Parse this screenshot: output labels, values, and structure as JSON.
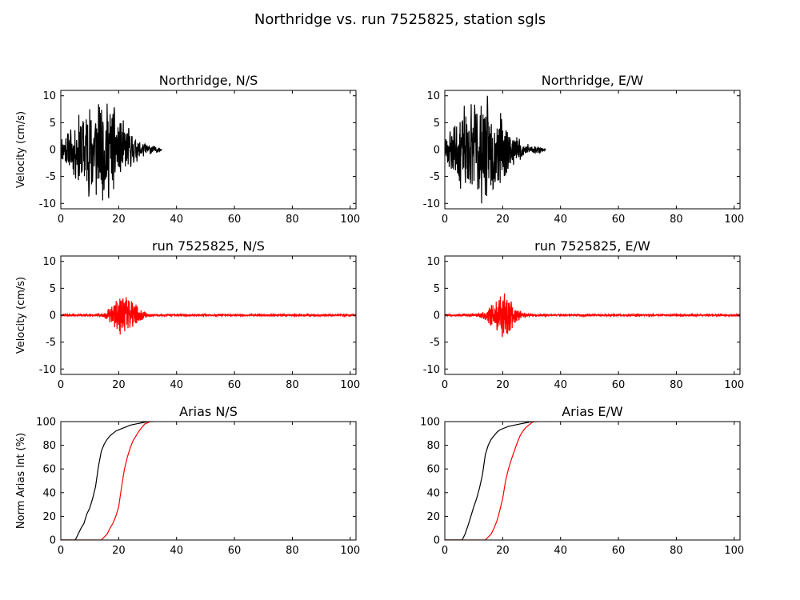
{
  "figure": {
    "title": "Northridge vs. run 7525825, station sgls"
  },
  "chart_data": [
    {
      "id": "ns-record",
      "type": "line",
      "title": "Northridge, N/S",
      "xlabel": "",
      "ylabel": "Velocity (cm/s)",
      "xlim": [
        0,
        102
      ],
      "ylim": [
        -11,
        11
      ],
      "xticks": [
        0,
        20,
        40,
        60,
        80,
        100
      ],
      "yticks": [
        10,
        5,
        0,
        -5,
        -10
      ],
      "series": [
        {
          "color": "#000000",
          "gen": {
            "start": 0,
            "end": 35,
            "peak": 10,
            "center": 13,
            "spread": 10,
            "seed": 11,
            "step": 0.08
          }
        }
      ]
    },
    {
      "id": "ew-record",
      "type": "line",
      "title": "Northridge, E/W",
      "xlabel": "",
      "ylabel": "",
      "xlim": [
        0,
        102
      ],
      "ylim": [
        -11,
        11
      ],
      "xticks": [
        0,
        20,
        40,
        60,
        80,
        100
      ],
      "yticks": [
        10,
        5,
        0,
        -5,
        -10
      ],
      "series": [
        {
          "color": "#000000",
          "gen": {
            "start": 0,
            "end": 35,
            "peak": 10,
            "center": 12,
            "spread": 10,
            "seed": 23,
            "step": 0.08
          }
        }
      ]
    },
    {
      "id": "ns-run",
      "type": "line",
      "title": "run 7525825, N/S",
      "xlabel": "",
      "ylabel": "Velocity (cm/s)",
      "xlim": [
        0,
        102
      ],
      "ylim": [
        -11,
        11
      ],
      "xticks": [
        0,
        20,
        40,
        60,
        80,
        100
      ],
      "yticks": [
        10,
        5,
        0,
        -5,
        -10
      ],
      "series": [
        {
          "color": "#ff0000",
          "gen": {
            "start": 0,
            "end": 102,
            "peak": 4.2,
            "center": 22,
            "spread": 4.5,
            "seed": 37,
            "step": 0.06
          }
        }
      ]
    },
    {
      "id": "ew-run",
      "type": "line",
      "title": "run 7525825, E/W",
      "xlabel": "",
      "ylabel": "",
      "xlim": [
        0,
        102
      ],
      "ylim": [
        -11,
        11
      ],
      "xticks": [
        0,
        20,
        40,
        60,
        80,
        100
      ],
      "yticks": [
        10,
        5,
        0,
        -5,
        -10
      ],
      "series": [
        {
          "color": "#ff0000",
          "gen": {
            "start": 0,
            "end": 102,
            "peak": 4.3,
            "center": 20,
            "spread": 4.5,
            "seed": 51,
            "step": 0.06
          }
        }
      ]
    },
    {
      "id": "arias-ns",
      "type": "line",
      "title": "Arias N/S",
      "xlabel": "",
      "ylabel": "Norm Arias Int (%)",
      "xlim": [
        0,
        102
      ],
      "ylim": [
        0,
        100
      ],
      "xticks": [
        0,
        20,
        40,
        60,
        80,
        100
      ],
      "yticks": [
        100,
        80,
        60,
        40,
        20,
        0
      ],
      "series": [
        {
          "color": "#000000",
          "x": [
            0,
            5,
            6,
            7,
            8,
            9,
            10,
            11,
            12,
            13,
            14,
            15,
            16,
            17,
            18,
            19,
            20,
            22,
            24,
            26,
            28,
            30,
            32
          ],
          "y": [
            0,
            0,
            5,
            10,
            14,
            22,
            27,
            35,
            45,
            62,
            75,
            81,
            85,
            88,
            90,
            92,
            93,
            95,
            97,
            98,
            99,
            100,
            100
          ]
        },
        {
          "color": "#ff0000",
          "x": [
            0,
            14,
            16,
            17,
            18,
            19,
            20,
            21,
            22,
            23,
            24,
            25,
            26,
            27,
            28,
            29,
            30,
            31
          ],
          "y": [
            0,
            0,
            5,
            10,
            14,
            20,
            28,
            45,
            60,
            70,
            78,
            84,
            88,
            92,
            95,
            98,
            99,
            100
          ]
        }
      ]
    },
    {
      "id": "arias-ew",
      "type": "line",
      "title": "Arias E/W",
      "xlabel": "",
      "ylabel": "",
      "xlim": [
        0,
        102
      ],
      "ylim": [
        0,
        100
      ],
      "xticks": [
        0,
        20,
        40,
        60,
        80,
        100
      ],
      "yticks": [
        100,
        80,
        60,
        40,
        20,
        0
      ],
      "series": [
        {
          "color": "#000000",
          "x": [
            0,
            6,
            7,
            8,
            9,
            10,
            11,
            12,
            13,
            14,
            15,
            16,
            17,
            18,
            19,
            20,
            22,
            24,
            26,
            28,
            30,
            32
          ],
          "y": [
            0,
            0,
            5,
            12,
            20,
            28,
            35,
            44,
            55,
            72,
            80,
            85,
            88,
            91,
            93,
            94,
            96,
            97,
            98,
            99,
            100,
            100
          ]
        },
        {
          "color": "#ff0000",
          "x": [
            0,
            14,
            16,
            17,
            18,
            19,
            20,
            21,
            22,
            23,
            24,
            25,
            26,
            27,
            28,
            29,
            30,
            31
          ],
          "y": [
            0,
            0,
            5,
            10,
            16,
            25,
            35,
            50,
            60,
            68,
            75,
            82,
            88,
            92,
            95,
            97,
            99,
            100
          ]
        }
      ]
    }
  ]
}
